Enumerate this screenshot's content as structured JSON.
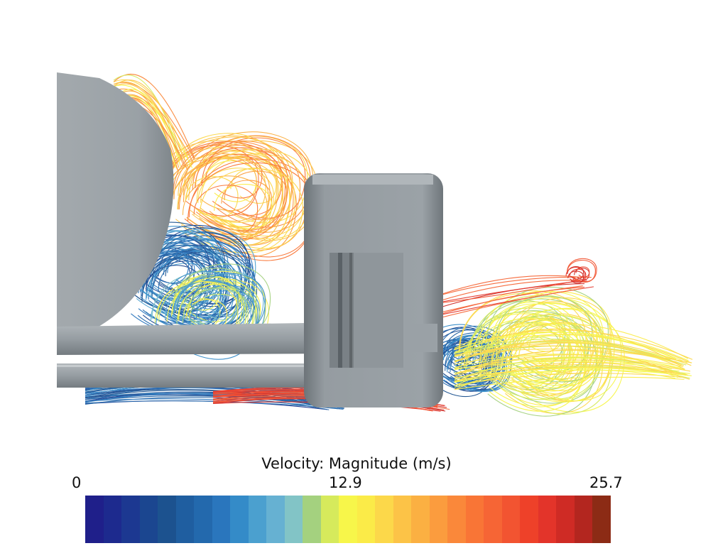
{
  "legend": {
    "title": "Velocity: Magnitude (m/s)",
    "min_label": "0",
    "mid_label": "12.9",
    "max_label": "25.7"
  },
  "colormap": [
    "#1f1f8a",
    "#1d2a8e",
    "#1c3891",
    "#1b4690",
    "#1c528f",
    "#1f5ea0",
    "#2369ad",
    "#2a76bd",
    "#348bc8",
    "#4ba0cf",
    "#66b1d2",
    "#82c4c6",
    "#a4d17f",
    "#d6ea5c",
    "#f7f64a",
    "#fbeb48",
    "#fcd84a",
    "#fcc347",
    "#fbb042",
    "#fb9c3e",
    "#fa883a",
    "#f97536",
    "#f66535",
    "#f25431",
    "#ee4129",
    "#e3342a",
    "#cf2b25",
    "#b3261f",
    "#8c2b15"
  ]
}
